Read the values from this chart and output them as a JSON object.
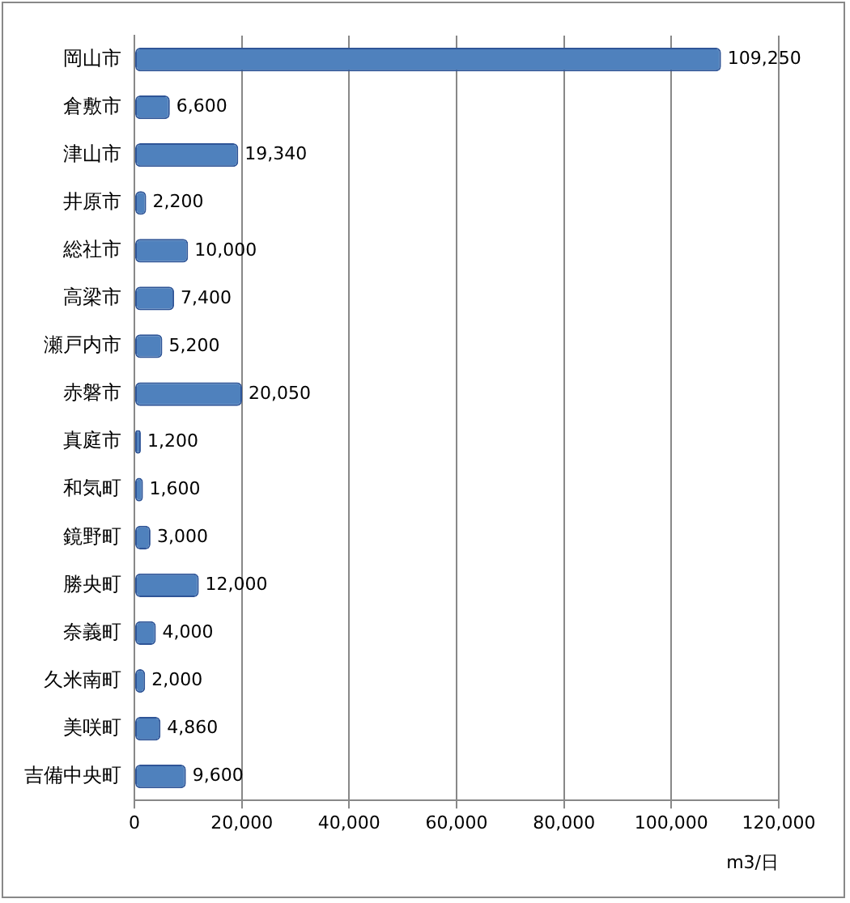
{
  "chart_data": {
    "type": "bar",
    "orientation": "horizontal",
    "xlabel": "m3/日",
    "categories": [
      "岡山市",
      "倉敷市",
      "津山市",
      "井原市",
      "総社市",
      "高梁市",
      "瀬戸内市",
      "赤磐市",
      "真庭市",
      "和気町",
      "鏡野町",
      "勝央町",
      "奈義町",
      "久米南町",
      "美咲町",
      "吉備中央町"
    ],
    "values": [
      109250,
      6600,
      19340,
      2200,
      10000,
      7400,
      5200,
      20050,
      1200,
      1600,
      3000,
      12000,
      4000,
      2000,
      4860,
      9600
    ],
    "value_labels": [
      "109,250",
      "6,600",
      "19,340",
      "2,200",
      "10,000",
      "7,400",
      "5,200",
      "20,050",
      "1,200",
      "1,600",
      "3,000",
      "12,000",
      "4,000",
      "2,000",
      "4,860",
      "9,600"
    ],
    "color": "#4f81bd",
    "xlim": [
      0,
      120000
    ],
    "xticks": [
      0,
      {
        "value": 20000,
        "label": "20,000"
      },
      {
        "value": 40000,
        "label": "40,000"
      },
      {
        "value": 60000,
        "label": "60,000"
      },
      {
        "value": 80000,
        "label": "80,000"
      },
      {
        "value": 100000,
        "label": "100,000"
      },
      {
        "value": 120000,
        "label": "120,000"
      }
    ],
    "grid": "x",
    "legend": false
  }
}
